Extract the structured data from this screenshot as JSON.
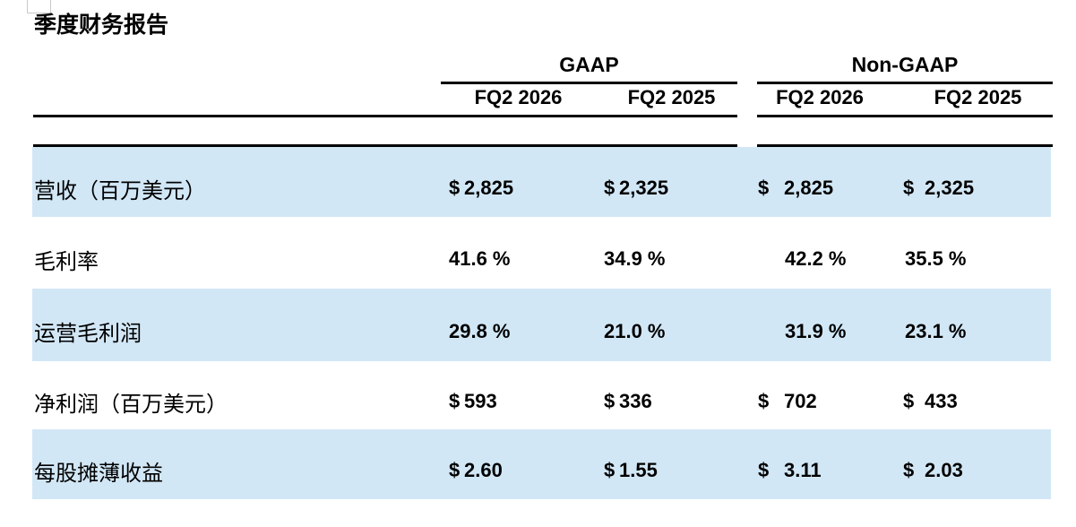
{
  "title": "季度财务报告",
  "colors": {
    "row_highlight": "#d2e7f6",
    "rule": "#000000",
    "text": "#000000"
  },
  "table": {
    "groups": [
      {
        "label": "GAAP"
      },
      {
        "label": "Non-GAAP"
      }
    ],
    "col_headers": [
      "FQ2 2026",
      "FQ2 2025",
      "FQ2 2026",
      "FQ2 2025"
    ],
    "rows": [
      {
        "label": "营收（百万美元）",
        "cells": [
          {
            "prefix": "$",
            "value": "2,825"
          },
          {
            "prefix": "$",
            "value": "2,325"
          },
          {
            "prefix": "$",
            "value": "2,825"
          },
          {
            "prefix": "$",
            "value": "2,325"
          }
        ]
      },
      {
        "label": "毛利率",
        "cells": [
          {
            "value": "41.6 %"
          },
          {
            "value": "34.9 %"
          },
          {
            "value": "42.2 %"
          },
          {
            "value": "35.5 %"
          }
        ]
      },
      {
        "label": "运营毛利润",
        "cells": [
          {
            "value": "29.8 %"
          },
          {
            "value": "21.0 %"
          },
          {
            "value": "31.9 %"
          },
          {
            "value": "23.1 %"
          }
        ]
      },
      {
        "label": "净利润（百万美元）",
        "cells": [
          {
            "prefix": "$",
            "value": "593"
          },
          {
            "prefix": "$",
            "value": "336"
          },
          {
            "prefix": "$",
            "value": "702"
          },
          {
            "prefix": "$",
            "value": "433"
          }
        ]
      },
      {
        "label": "每股摊薄收益",
        "cells": [
          {
            "prefix": "$",
            "value": "2.60"
          },
          {
            "prefix": "$",
            "value": "1.55"
          },
          {
            "prefix": "$",
            "value": "3.11"
          },
          {
            "prefix": "$",
            "value": "2.03"
          }
        ]
      }
    ]
  }
}
